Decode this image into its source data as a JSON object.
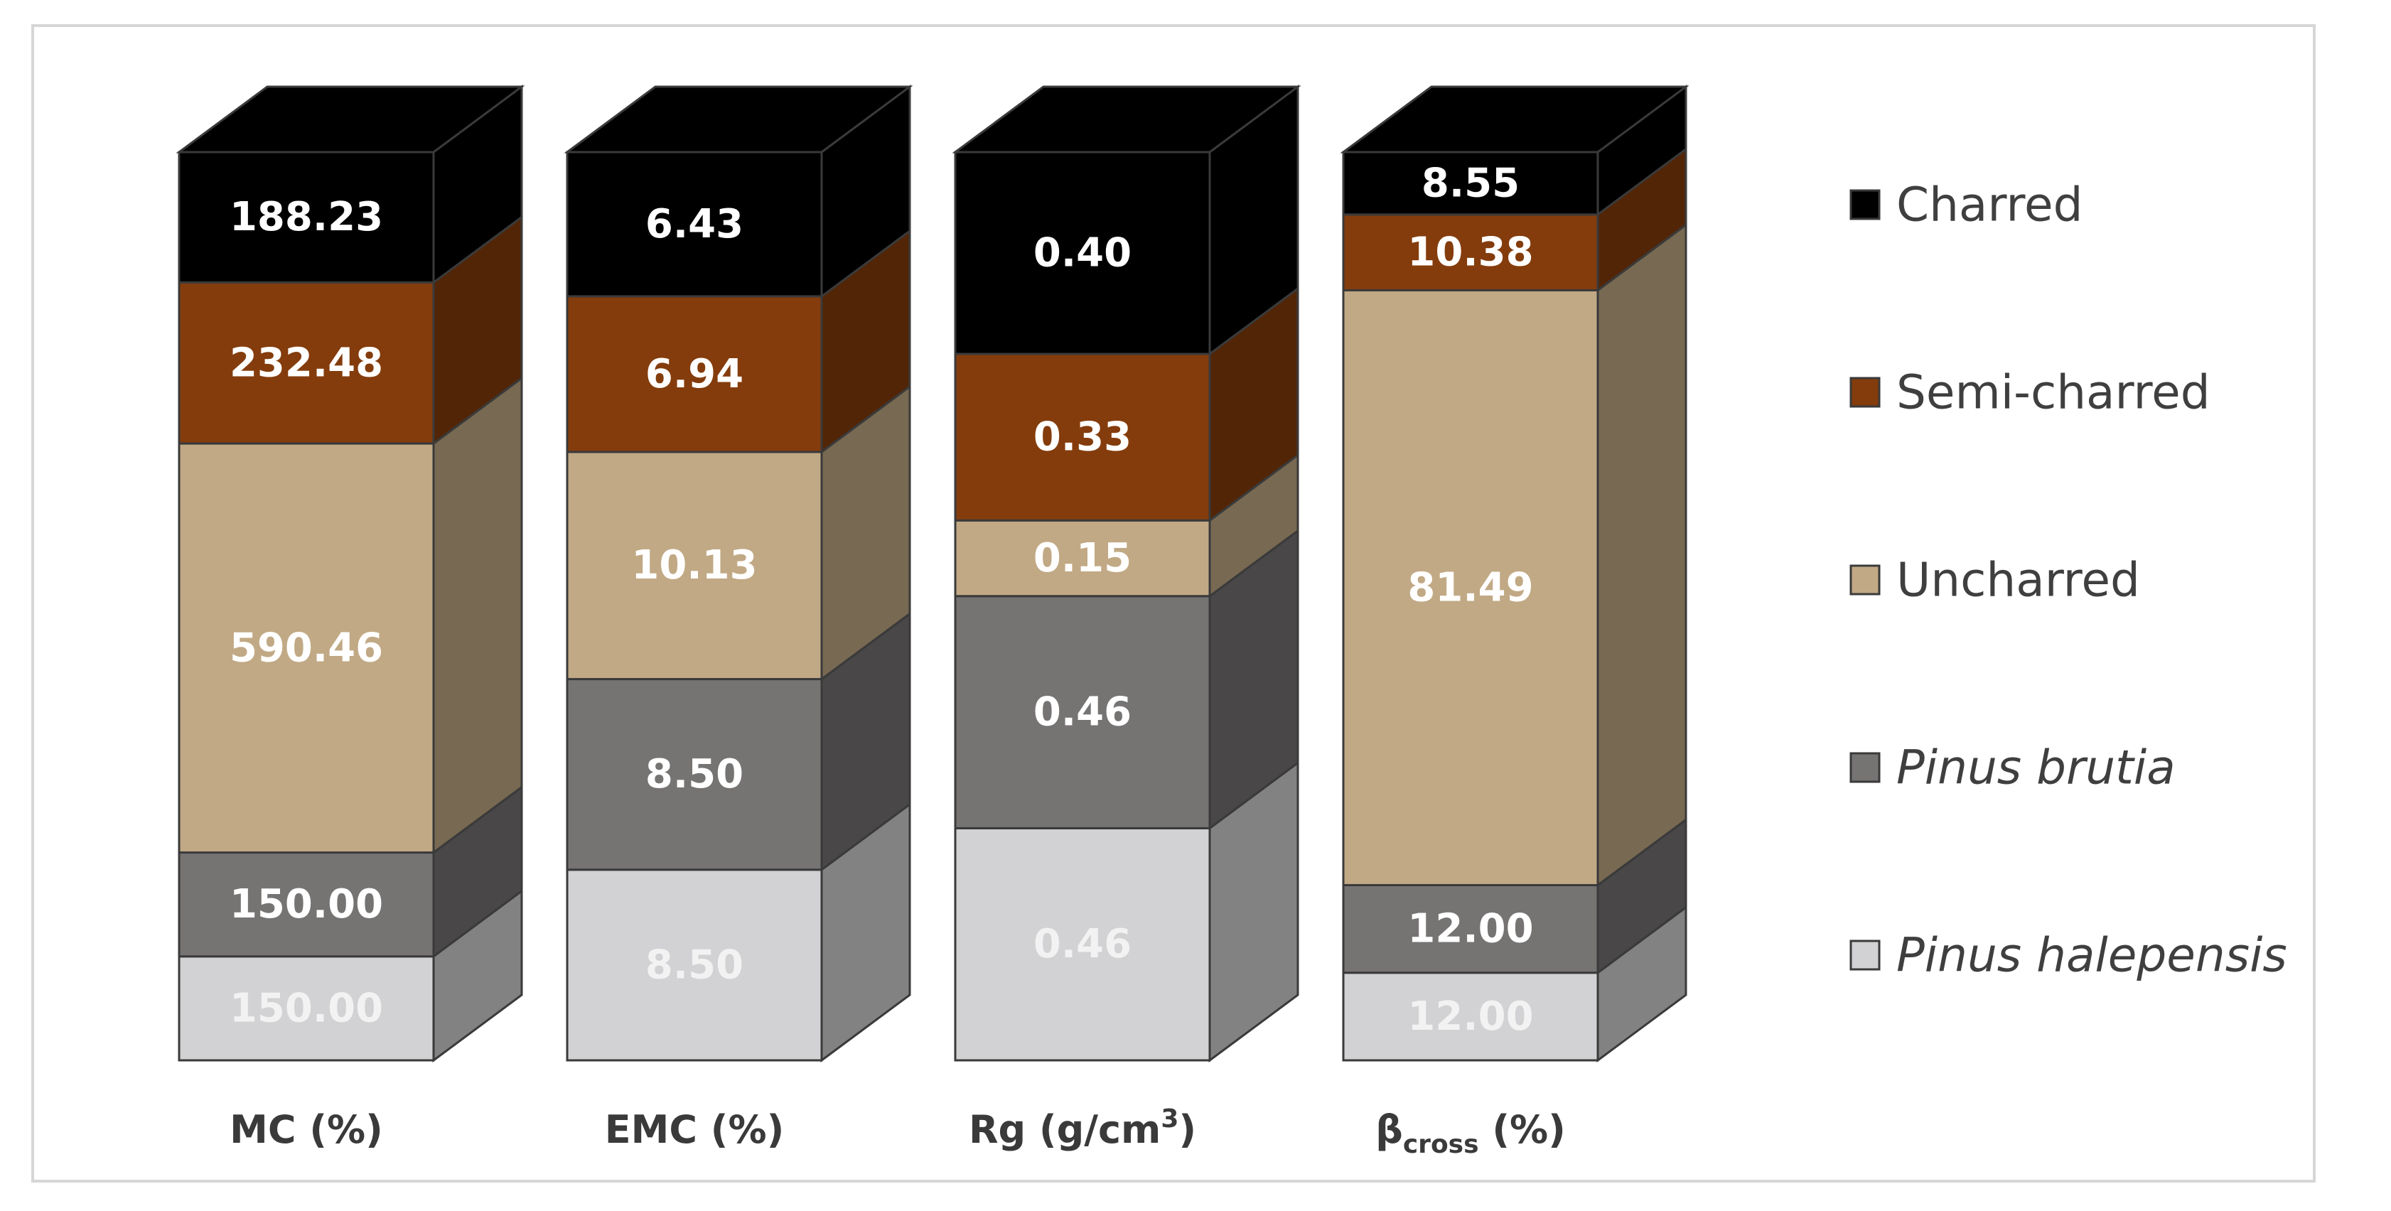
{
  "chart_data": {
    "type": "bar",
    "stacked": true,
    "three_d": true,
    "categories": [
      "MC (%)",
      "EMC (%)",
      "Rg (g/cm³)",
      "βcross (%)"
    ],
    "category_labels": [
      {
        "main": "MC (%)",
        "sub": "",
        "sup": "",
        "rest": ""
      },
      {
        "main": "EMC (%)",
        "sub": "",
        "sup": "",
        "rest": ""
      },
      {
        "main": "Rg (g/cm",
        "sub": "",
        "sup": "3",
        "rest": ")"
      },
      {
        "main": "β",
        "sub": "cross",
        "sup": "",
        "rest": " (%)"
      }
    ],
    "series": [
      {
        "name": "Pinus halepensis",
        "italic": true,
        "color": "#d2d1d3",
        "label_color": "#f2f2f2",
        "values": [
          150.0,
          8.5,
          0.46,
          12.0
        ],
        "labels": [
          "150.00",
          "8.50",
          "0.46",
          "12.00"
        ]
      },
      {
        "name": "Pinus brutia",
        "italic": true,
        "color": "#767373",
        "label_color": "#ffffff",
        "values": [
          150.0,
          8.5,
          0.46,
          12.0
        ],
        "labels": [
          "150.00",
          "8.50",
          "0.46",
          "12.00"
        ]
      },
      {
        "name": "Uncharred",
        "italic": false,
        "color": "#c1a985",
        "label_color": "#ffffff",
        "values": [
          590.46,
          10.13,
          0.15,
          81.49
        ],
        "labels": [
          "590.46",
          "10.13",
          "0.15",
          "81.49"
        ]
      },
      {
        "name": "Semi-charred",
        "italic": false,
        "color": "#843c0c",
        "label_color": "#ffffff",
        "values": [
          232.48,
          6.94,
          0.33,
          10.38
        ],
        "labels": [
          "232.48",
          "6.94",
          "0.33",
          "10.38"
        ]
      },
      {
        "name": "Charred",
        "italic": false,
        "color": "#000000",
        "label_color": "#ffffff",
        "values": [
          188.23,
          6.43,
          0.4,
          8.55
        ],
        "labels": [
          "188.23",
          "6.43",
          "0.40",
          "8.55"
        ]
      }
    ],
    "legend_order": [
      "Charred",
      "Semi-charred",
      "Uncharred",
      "Pinus brutia",
      "Pinus halepensis"
    ],
    "legend_position": "right",
    "grid": false
  }
}
